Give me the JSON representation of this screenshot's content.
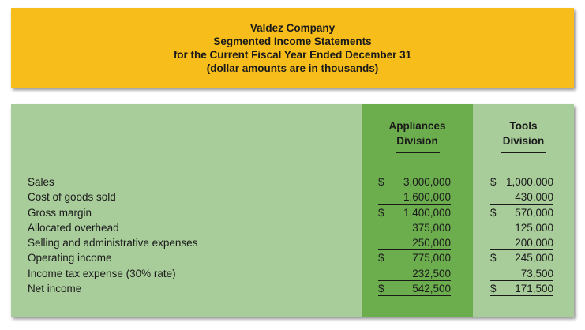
{
  "header": {
    "company": "Valdez Company",
    "statement": "Segmented Income Statements",
    "period": "for the Current Fiscal Year Ended December 31",
    "note": "(dollar amounts are in thousands)"
  },
  "columns": {
    "appliances": {
      "line1": "Appliances",
      "line2": "Division"
    },
    "tools": {
      "line1": "Tools",
      "line2": "Division"
    }
  },
  "rows": [
    {
      "label": "Sales",
      "appliances": {
        "dollar": "$",
        "value": "3,000,000"
      },
      "tools": {
        "dollar": "$",
        "value": "1,000,000"
      }
    },
    {
      "label": "Cost of goods sold",
      "appliances": {
        "dollar": "",
        "value": "1,600,000"
      },
      "tools": {
        "dollar": "",
        "value": "430,000"
      }
    },
    {
      "label": "Gross margin",
      "appliances": {
        "dollar": "$",
        "value": "1,400,000"
      },
      "tools": {
        "dollar": "$",
        "value": "570,000"
      }
    },
    {
      "label": "Allocated overhead",
      "appliances": {
        "dollar": "",
        "value": "375,000"
      },
      "tools": {
        "dollar": "",
        "value": "125,000"
      }
    },
    {
      "label": "Selling and administrative expenses",
      "appliances": {
        "dollar": "",
        "value": "250,000"
      },
      "tools": {
        "dollar": "",
        "value": "200,000"
      }
    },
    {
      "label": "Operating income",
      "appliances": {
        "dollar": "$",
        "value": "775,000"
      },
      "tools": {
        "dollar": "$",
        "value": "245,000"
      }
    },
    {
      "label": "Income tax expense (30% rate)",
      "appliances": {
        "dollar": "",
        "value": "232,500"
      },
      "tools": {
        "dollar": "",
        "value": "73,500"
      }
    },
    {
      "label": "Net income",
      "appliances": {
        "dollar": "$",
        "value": "542,500"
      },
      "tools": {
        "dollar": "$",
        "value": "171,500"
      }
    }
  ],
  "colors": {
    "header_bg": "#f6bd1b",
    "table_bg": "#a8cc9a",
    "highlight_col": "#6cad4e"
  }
}
